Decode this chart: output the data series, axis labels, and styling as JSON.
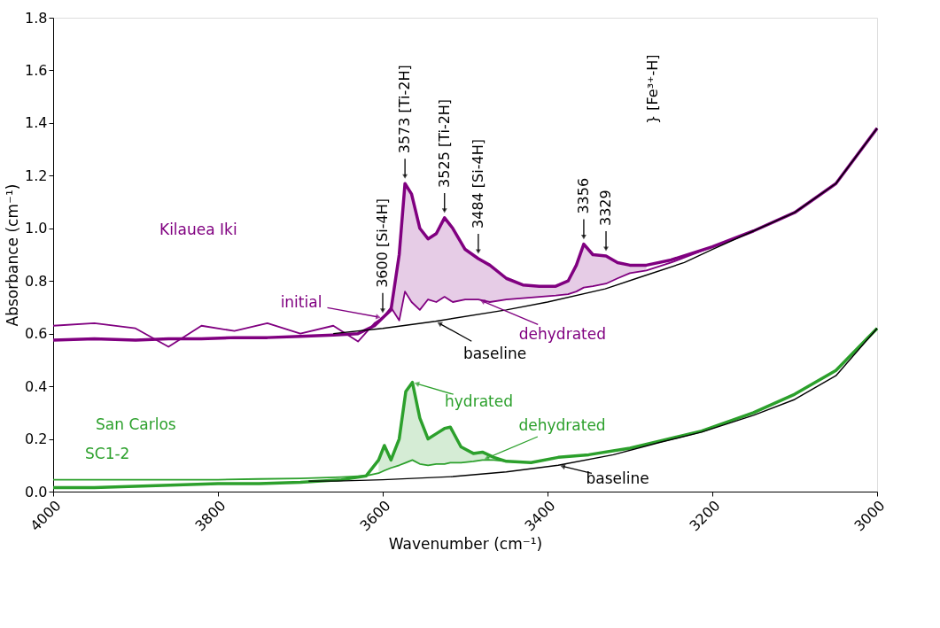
{
  "chart_data": {
    "type": "line",
    "xlabel": "Wavenumber (cm⁻¹)",
    "ylabel": "Absorbance (cm⁻¹)",
    "xlim": [
      4000,
      3000
    ],
    "xticks": [
      4000,
      3800,
      3600,
      3400,
      3200,
      3000
    ],
    "ylim": [
      0,
      1.8
    ],
    "yticks": [
      {
        "value": 0,
        "label": "0.0"
      },
      0.2,
      0.4,
      0.6,
      0.8,
      {
        "value": 1,
        "label": "1.0"
      },
      1.2,
      1.4,
      1.6,
      1.8
    ],
    "grid": false,
    "marker": "none",
    "line_style": "solid",
    "series": [
      {
        "color": "#800080",
        "x": [
          4000,
          3950,
          3900,
          3860,
          3820,
          3780,
          3740,
          3700,
          3660,
          3630,
          3610,
          3600,
          3590,
          3580,
          3573,
          3565,
          3555,
          3545,
          3535,
          3525,
          3515,
          3500,
          3484,
          3470,
          3450,
          3430,
          3410,
          3390,
          3375,
          3365,
          3356,
          3345,
          3329,
          3315,
          3300,
          3280,
          3250,
          3200,
          3150,
          3100,
          3050,
          3000
        ],
        "values": [
          0.575,
          0.58,
          0.575,
          0.58,
          0.58,
          0.585,
          0.585,
          0.59,
          0.595,
          0.6,
          0.63,
          0.66,
          0.69,
          0.9,
          1.17,
          1.13,
          1.0,
          0.96,
          0.98,
          1.04,
          1.0,
          0.92,
          0.885,
          0.86,
          0.81,
          0.785,
          0.78,
          0.78,
          0.8,
          0.86,
          0.94,
          0.9,
          0.895,
          0.87,
          0.86,
          0.86,
          0.88,
          0.93,
          0.99,
          1.06,
          1.17,
          1.38
        ],
        "lower": [
          null,
          null,
          null,
          null,
          null,
          null,
          null,
          null,
          null,
          null,
          0.64,
          0.66,
          0.7,
          0.65,
          0.76,
          0.72,
          0.69,
          0.73,
          0.72,
          0.74,
          0.72,
          0.73,
          0.73,
          0.72,
          0.73,
          0.735,
          0.74,
          0.745,
          0.75,
          0.76,
          0.775,
          0.78,
          0.79,
          0.81,
          0.83,
          0.84,
          null,
          null,
          null,
          null,
          null,
          null
        ],
        "upper": [
          null,
          null,
          null,
          null,
          null,
          null,
          null,
          null,
          null,
          null,
          0.63,
          0.66,
          0.69,
          0.9,
          1.17,
          1.13,
          1.0,
          0.96,
          0.98,
          1.04,
          1.0,
          0.92,
          0.885,
          0.86,
          0.81,
          0.785,
          0.78,
          0.78,
          0.8,
          0.86,
          0.94,
          0.9,
          0.895,
          0.87,
          0.86,
          0.86,
          null,
          null,
          null,
          null,
          null,
          null
        ]
      },
      {
        "color": "#800080",
        "x": [
          4000,
          3950,
          3900,
          3860,
          3820,
          3780,
          3740,
          3700,
          3660,
          3630,
          3610,
          3600,
          3590,
          3580,
          3573,
          3565,
          3555,
          3545,
          3535,
          3525,
          3515,
          3500,
          3484,
          3470,
          3450,
          3430,
          3410,
          3390,
          3375,
          3365,
          3356,
          3345,
          3329,
          3315,
          3300,
          3280,
          3250,
          3200,
          3150,
          3100,
          3050,
          3000
        ],
        "values": [
          0.63,
          0.64,
          0.62,
          0.55,
          0.63,
          0.61,
          0.64,
          0.6,
          0.63,
          0.57,
          0.64,
          0.66,
          0.7,
          0.65,
          0.76,
          0.72,
          0.69,
          0.73,
          0.72,
          0.74,
          0.72,
          0.73,
          0.73,
          0.72,
          0.73,
          0.735,
          0.74,
          0.745,
          0.75,
          0.76,
          0.775,
          0.78,
          0.79,
          0.81,
          0.83,
          0.84,
          0.87,
          0.93,
          0.99,
          1.06,
          1.17,
          1.38
        ]
      },
      {
        "color": "#000000",
        "x": [
          3660,
          3600,
          3536,
          3450,
          3400,
          3330,
          3287,
          3234,
          3200,
          3150,
          3100,
          3050,
          3000
        ],
        "values": [
          0.6,
          0.62,
          0.647,
          0.69,
          0.72,
          0.77,
          0.815,
          0.87,
          0.92,
          0.99,
          1.06,
          1.17,
          1.38
        ]
      },
      {
        "color": "#2ca02c",
        "x": [
          4000,
          3950,
          3900,
          3850,
          3800,
          3750,
          3700,
          3650,
          3620,
          3605,
          3598,
          3590,
          3580,
          3572,
          3564,
          3555,
          3545,
          3535,
          3525,
          3518,
          3505,
          3490,
          3479,
          3465,
          3450,
          3420,
          3387,
          3350,
          3300,
          3266,
          3213,
          3150,
          3100,
          3050,
          3000
        ],
        "values": [
          0.015,
          0.015,
          0.02,
          0.025,
          0.03,
          0.03,
          0.035,
          0.045,
          0.06,
          0.12,
          0.175,
          0.12,
          0.2,
          0.38,
          0.415,
          0.28,
          0.2,
          0.22,
          0.24,
          0.245,
          0.17,
          0.145,
          0.15,
          0.13,
          0.115,
          0.11,
          0.13,
          0.14,
          0.165,
          0.19,
          0.23,
          0.3,
          0.37,
          0.46,
          0.62
        ],
        "lower": [
          null,
          null,
          null,
          null,
          null,
          null,
          null,
          null,
          null,
          0.07,
          0.08,
          0.09,
          0.1,
          0.11,
          0.12,
          0.105,
          0.1,
          0.105,
          0.105,
          0.11,
          0.11,
          0.115,
          0.12,
          0.12,
          0.115,
          null,
          null,
          null,
          null,
          null,
          null,
          null,
          null,
          null,
          null
        ],
        "upper": [
          null,
          null,
          null,
          null,
          null,
          null,
          null,
          null,
          null,
          0.12,
          0.175,
          0.12,
          0.2,
          0.38,
          0.415,
          0.28,
          0.2,
          0.22,
          0.24,
          0.245,
          0.17,
          0.145,
          0.15,
          0.13,
          0.115,
          null,
          null,
          null,
          null,
          null,
          null,
          null,
          null,
          null,
          null
        ]
      },
      {
        "color": "#2ca02c",
        "x": [
          4000,
          3950,
          3900,
          3850,
          3800,
          3750,
          3700,
          3650,
          3620,
          3605,
          3598,
          3590,
          3580,
          3572,
          3564,
          3555,
          3545,
          3535,
          3525,
          3518,
          3505,
          3490,
          3479,
          3465,
          3450,
          3420,
          3387,
          3350,
          3300,
          3266,
          3213,
          3150,
          3100,
          3050,
          3000
        ],
        "values": [
          0.045,
          0.045,
          0.045,
          0.045,
          0.045,
          0.048,
          0.05,
          0.055,
          0.06,
          0.07,
          0.08,
          0.09,
          0.1,
          0.11,
          0.12,
          0.105,
          0.1,
          0.105,
          0.105,
          0.11,
          0.11,
          0.115,
          0.12,
          0.12,
          0.115,
          0.11,
          0.13,
          0.14,
          0.165,
          0.19,
          0.23,
          0.3,
          0.37,
          0.46,
          0.62
        ]
      },
      {
        "color": "#000000",
        "x": [
          3690,
          3656,
          3600,
          3515,
          3450,
          3387,
          3320,
          3266,
          3213,
          3150,
          3100,
          3050,
          3000
        ],
        "values": [
          0.04,
          0.04,
          0.045,
          0.057,
          0.075,
          0.1,
          0.14,
          0.185,
          0.226,
          0.29,
          0.35,
          0.44,
          0.62
        ]
      }
    ],
    "annotations": [
      {
        "text": "3600 [Si-4H]",
        "x": 3600,
        "y": 0.66
      },
      {
        "text": "3573 [Ti-2H]",
        "x": 3573,
        "y": 1.17
      },
      {
        "text": "3525 [Ti-2H]",
        "x": 3525,
        "y": 1.04
      },
      {
        "text": "3484 [Si-4H]",
        "x": 3484,
        "y": 0.885
      },
      {
        "text": "3356",
        "x": 3356,
        "y": 0.94
      },
      {
        "text": "3329",
        "x": 3329,
        "y": 0.895
      },
      "} [Fe³⁺-H]",
      "Kilauea Iki",
      {
        "text": "initial",
        "x": 3600,
        "y": 0.66
      },
      {
        "text": "dehydrated",
        "x": 3484,
        "y": 0.73
      },
      {
        "text": "baseline",
        "x": 3536,
        "y": 0.647
      },
      "San Carlos",
      "SC1-2",
      {
        "text": "hydrated",
        "x": 3564,
        "y": 0.415
      },
      {
        "text": "dehydrated",
        "x": 3479,
        "y": 0.12
      },
      {
        "text": "baseline",
        "x": 3387,
        "y": 0.1
      }
    ]
  }
}
